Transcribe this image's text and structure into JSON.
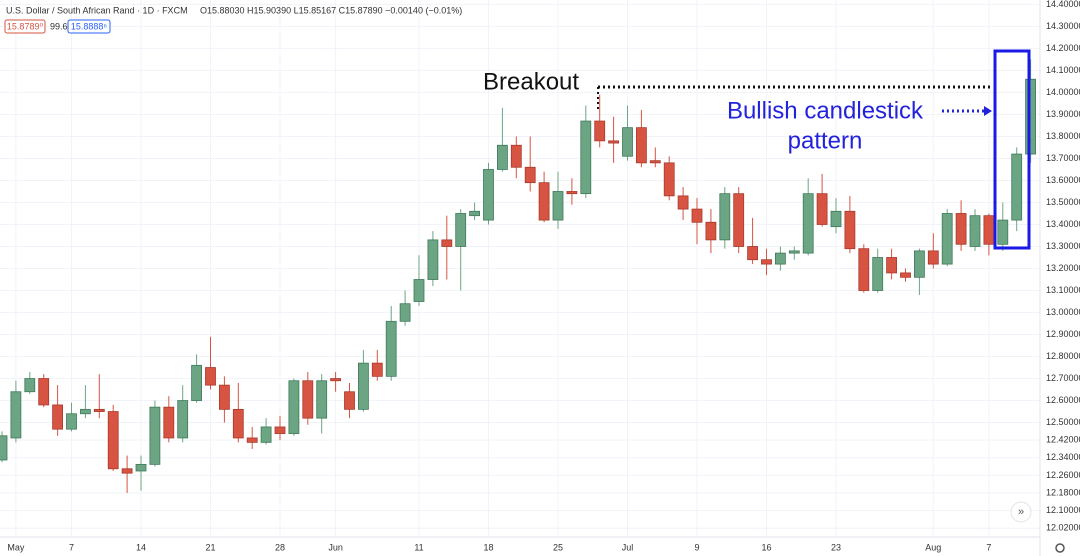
{
  "chart_data": {
    "type": "candlestick",
    "title": "U.S. Dollar / South African Rand · 1D · FXCM",
    "ohlc_text": "O15.88030 H15.90390 L15.85167 C15.87890 −0.00140 (−0.01%)",
    "price_tags": [
      "15.8789⁰",
      "99.6",
      "15.8888⁶"
    ],
    "annotations": [
      "Breakout",
      "Bullish candlestick",
      "pattern"
    ],
    "up_color": "#6ba583",
    "down_color": "#d75442",
    "categories": [
      null,
      "May",
      null,
      null,
      null,
      "7",
      null,
      null,
      null,
      null,
      "14",
      null,
      null,
      null,
      null,
      "21",
      null,
      null,
      null,
      null,
      "28",
      null,
      null,
      null,
      "Jun",
      null,
      null,
      null,
      null,
      null,
      "11",
      null,
      null,
      null,
      null,
      "18",
      null,
      null,
      null,
      null,
      "25",
      null,
      null,
      null,
      null,
      "Jul",
      null,
      null,
      null,
      null,
      "9",
      null,
      null,
      null,
      null,
      "16",
      null,
      null,
      null,
      null,
      "23",
      null,
      null,
      null,
      null,
      null,
      null,
      "Aug",
      null,
      null,
      null,
      "7",
      null,
      null,
      null
    ],
    "open": [
      12.33,
      12.43,
      12.64,
      12.7,
      12.58,
      12.47,
      12.54,
      12.56,
      12.55,
      12.29,
      12.28,
      12.31,
      12.57,
      12.43,
      12.6,
      12.75,
      12.67,
      12.56,
      12.43,
      12.41,
      12.48,
      12.45,
      12.69,
      12.52,
      12.7,
      12.64,
      12.56,
      12.77,
      12.71,
      12.96,
      13.05,
      13.15,
      13.33,
      13.3,
      13.44,
      13.42,
      13.65,
      13.76,
      13.66,
      13.59,
      13.42,
      13.55,
      13.54,
      13.87,
      13.78,
      13.71,
      13.84,
      13.69,
      13.68,
      13.53,
      13.47,
      13.41,
      13.33,
      13.54,
      13.3,
      13.24,
      13.22,
      13.27,
      13.27,
      13.54,
      13.39,
      13.46,
      13.29,
      13.1,
      13.25,
      13.18,
      13.16,
      13.28,
      13.22,
      13.45,
      13.3,
      13.44,
      13.31,
      13.42,
      13.72
    ],
    "high": [
      12.46,
      12.69,
      12.73,
      12.72,
      12.67,
      12.59,
      12.67,
      12.72,
      12.58,
      12.35,
      12.35,
      12.6,
      12.62,
      12.67,
      12.81,
      12.89,
      12.71,
      12.68,
      12.48,
      12.52,
      12.53,
      12.7,
      12.73,
      12.72,
      12.73,
      12.68,
      12.83,
      12.83,
      13.03,
      13.1,
      13.26,
      13.37,
      13.44,
      13.47,
      13.5,
      13.68,
      13.93,
      13.8,
      13.8,
      13.64,
      13.64,
      13.61,
      13.94,
      13.99,
      13.89,
      13.94,
      13.92,
      13.75,
      13.71,
      13.57,
      13.52,
      13.47,
      13.57,
      13.57,
      13.43,
      13.29,
      13.3,
      13.3,
      13.61,
      13.63,
      13.52,
      13.53,
      13.31,
      13.29,
      13.29,
      13.2,
      13.29,
      13.36,
      13.47,
      13.51,
      13.47,
      13.45,
      13.5,
      13.75,
      14.15
    ],
    "low": [
      12.32,
      12.41,
      12.63,
      12.57,
      12.44,
      12.46,
      12.52,
      12.52,
      12.28,
      12.18,
      12.19,
      12.3,
      12.41,
      12.41,
      12.59,
      12.65,
      12.5,
      12.41,
      12.38,
      12.4,
      12.42,
      12.44,
      12.49,
      12.45,
      12.64,
      12.52,
      12.55,
      12.69,
      12.69,
      12.94,
      13.03,
      13.12,
      13.15,
      13.1,
      13.42,
      13.4,
      13.64,
      13.61,
      13.55,
      13.41,
      13.38,
      13.49,
      13.52,
      13.75,
      13.68,
      13.69,
      13.66,
      13.66,
      13.51,
      13.42,
      13.31,
      13.27,
      13.29,
      13.27,
      13.22,
      13.17,
      13.19,
      13.24,
      13.26,
      13.39,
      13.36,
      13.27,
      13.09,
      13.09,
      13.15,
      13.14,
      13.08,
      13.2,
      13.21,
      13.28,
      13.28,
      13.26,
      13.28,
      13.37,
      13.68
    ],
    "close": [
      12.44,
      12.64,
      12.7,
      12.58,
      12.47,
      12.54,
      12.56,
      12.55,
      12.29,
      12.27,
      12.31,
      12.57,
      12.43,
      12.6,
      12.76,
      12.67,
      12.56,
      12.43,
      12.41,
      12.48,
      12.45,
      12.69,
      12.52,
      12.69,
      12.69,
      12.56,
      12.77,
      12.71,
      12.96,
      13.04,
      13.15,
      13.33,
      13.3,
      13.45,
      13.46,
      13.65,
      13.76,
      13.66,
      13.59,
      13.42,
      13.55,
      13.54,
      13.87,
      13.78,
      13.77,
      13.84,
      13.68,
      13.68,
      13.53,
      13.47,
      13.41,
      13.33,
      13.54,
      13.3,
      13.24,
      13.22,
      13.27,
      13.28,
      13.54,
      13.4,
      13.46,
      13.29,
      13.1,
      13.25,
      13.18,
      13.16,
      13.28,
      13.22,
      13.45,
      13.31,
      13.44,
      13.31,
      13.42,
      13.72,
      14.06
    ],
    "ylim": [
      11.98,
      14.42
    ],
    "yticks": [
      {
        "value": 12.02,
        "label": "12.02000"
      },
      {
        "value": 12.1,
        "label": "12.10000"
      },
      {
        "value": 12.18,
        "label": "12.18000"
      },
      {
        "value": 12.26,
        "label": "12.26000"
      },
      {
        "value": 12.34,
        "label": "12.34000"
      },
      {
        "value": 12.42,
        "label": "12.42000"
      },
      {
        "value": 12.5,
        "label": "12.50000"
      },
      {
        "value": 12.6,
        "label": "12.60000"
      },
      {
        "value": 12.7,
        "label": "12.70000"
      },
      {
        "value": 12.8,
        "label": "12.80000"
      },
      {
        "value": 12.9,
        "label": "12.90000"
      },
      {
        "value": 13.0,
        "label": "13.00000"
      },
      {
        "value": 13.1,
        "label": "13.10000"
      },
      {
        "value": 13.2,
        "label": "13.20000"
      },
      {
        "value": 13.3,
        "label": "13.30000"
      },
      {
        "value": 13.4,
        "label": "13.40000"
      },
      {
        "value": 13.5,
        "label": "13.50000"
      },
      {
        "value": 13.6,
        "label": "13.60000"
      },
      {
        "value": 13.7,
        "label": "13.70000"
      },
      {
        "value": 13.8,
        "label": "13.80000"
      },
      {
        "value": 13.9,
        "label": "13.90000"
      },
      {
        "value": 14.0,
        "label": "14.00000"
      },
      {
        "value": 14.1,
        "label": "14.10000"
      },
      {
        "value": 14.2,
        "label": "14.20000"
      },
      {
        "value": 14.3,
        "label": "14.30000"
      },
      {
        "value": 14.4,
        "label": "14.40000"
      }
    ],
    "grid": true
  }
}
